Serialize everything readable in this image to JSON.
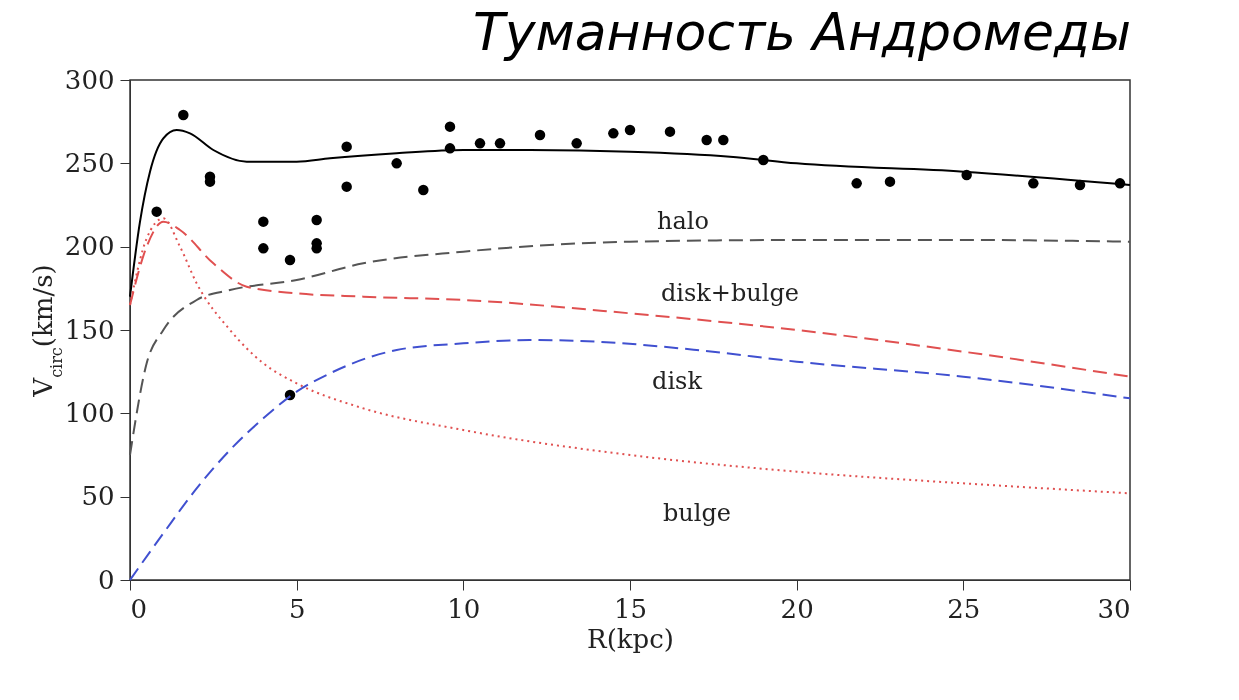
{
  "chart_data": {
    "type": "line",
    "title": "Туманность Андромеды",
    "xlabel": "R(kpc)",
    "ylabel": "V$_{circ}$(km/s)",
    "xlim": [
      0,
      30
    ],
    "xticks": [
      0,
      5,
      10,
      15,
      20,
      25,
      30
    ],
    "ylim": [
      0,
      300
    ],
    "yticks": [
      0,
      50,
      100,
      150,
      200,
      250,
      300
    ],
    "grid": false,
    "series": [
      {
        "type": "scatter",
        "color": "#000000",
        "marker": "circle",
        "x": [
          0.8,
          1.6,
          2.4,
          2.4,
          4.0,
          4.0,
          4.8,
          4.8,
          5.6,
          5.6,
          5.6,
          6.5,
          6.5,
          8.0,
          8.8,
          9.6,
          9.6,
          10.5,
          11.1,
          12.3,
          13.4,
          14.5,
          15.0,
          16.2,
          17.3,
          17.8,
          19.0,
          21.8,
          22.8,
          25.1,
          27.1,
          28.5,
          29.7
        ],
        "values": [
          221,
          279,
          242,
          239,
          215,
          199,
          192,
          111,
          216,
          202,
          199,
          260,
          236,
          250,
          234,
          272,
          259,
          262,
          262,
          267,
          262,
          268,
          270,
          269,
          264,
          264,
          252,
          238,
          239,
          243,
          238,
          237,
          238
        ]
      },
      {
        "type": "line",
        "color": "#000000",
        "line_style": "solid",
        "x": [
          0,
          0.3,
          0.6,
          1.0,
          1.4,
          1.8,
          2.5,
          3.5,
          5,
          6,
          8,
          10,
          12,
          15,
          18,
          20,
          25,
          30
        ],
        "values": [
          170,
          215,
          245,
          265,
          270,
          268,
          258,
          251,
          251,
          253,
          256,
          258,
          258,
          257,
          254,
          250,
          245,
          237
        ]
      },
      {
        "type": "line",
        "color": "#555555",
        "line_style": "dashed",
        "x": [
          0,
          0.5,
          1,
          2,
          3,
          5,
          7,
          10,
          15,
          20,
          25,
          30
        ],
        "values": [
          75,
          130,
          150,
          168,
          174,
          180,
          190,
          197,
          203,
          204,
          204,
          203
        ]
      },
      {
        "type": "line",
        "color": "#e05050",
        "line_style": "dashed",
        "x": [
          0,
          0.5,
          1,
          1.5,
          2.5,
          3.5,
          5,
          7,
          10,
          15,
          20,
          25,
          30
        ],
        "values": [
          165,
          200,
          215,
          210,
          190,
          176,
          172,
          170,
          168,
          160,
          150,
          137,
          122
        ]
      },
      {
        "type": "line",
        "color": "#e05050",
        "line_style": "dotted",
        "x": [
          0,
          0.5,
          1,
          1.5,
          2,
          3,
          4,
          5,
          7,
          10,
          15,
          20,
          25,
          30
        ],
        "values": [
          165,
          205,
          217,
          200,
          178,
          150,
          130,
          118,
          103,
          90,
          75,
          65,
          58,
          52
        ]
      },
      {
        "type": "line",
        "color": "#4050d0",
        "line_style": "dashed",
        "x": [
          0,
          1,
          2,
          3,
          4,
          5,
          6,
          8,
          10,
          12,
          14,
          17,
          20,
          25,
          30
        ],
        "values": [
          0,
          28,
          55,
          78,
          97,
          113,
          124,
          138,
          142,
          144,
          143,
          138,
          131,
          122,
          109
        ]
      }
    ],
    "annotations": [
      "halo",
      "disk+bulge",
      "disk",
      "bulge"
    ]
  }
}
